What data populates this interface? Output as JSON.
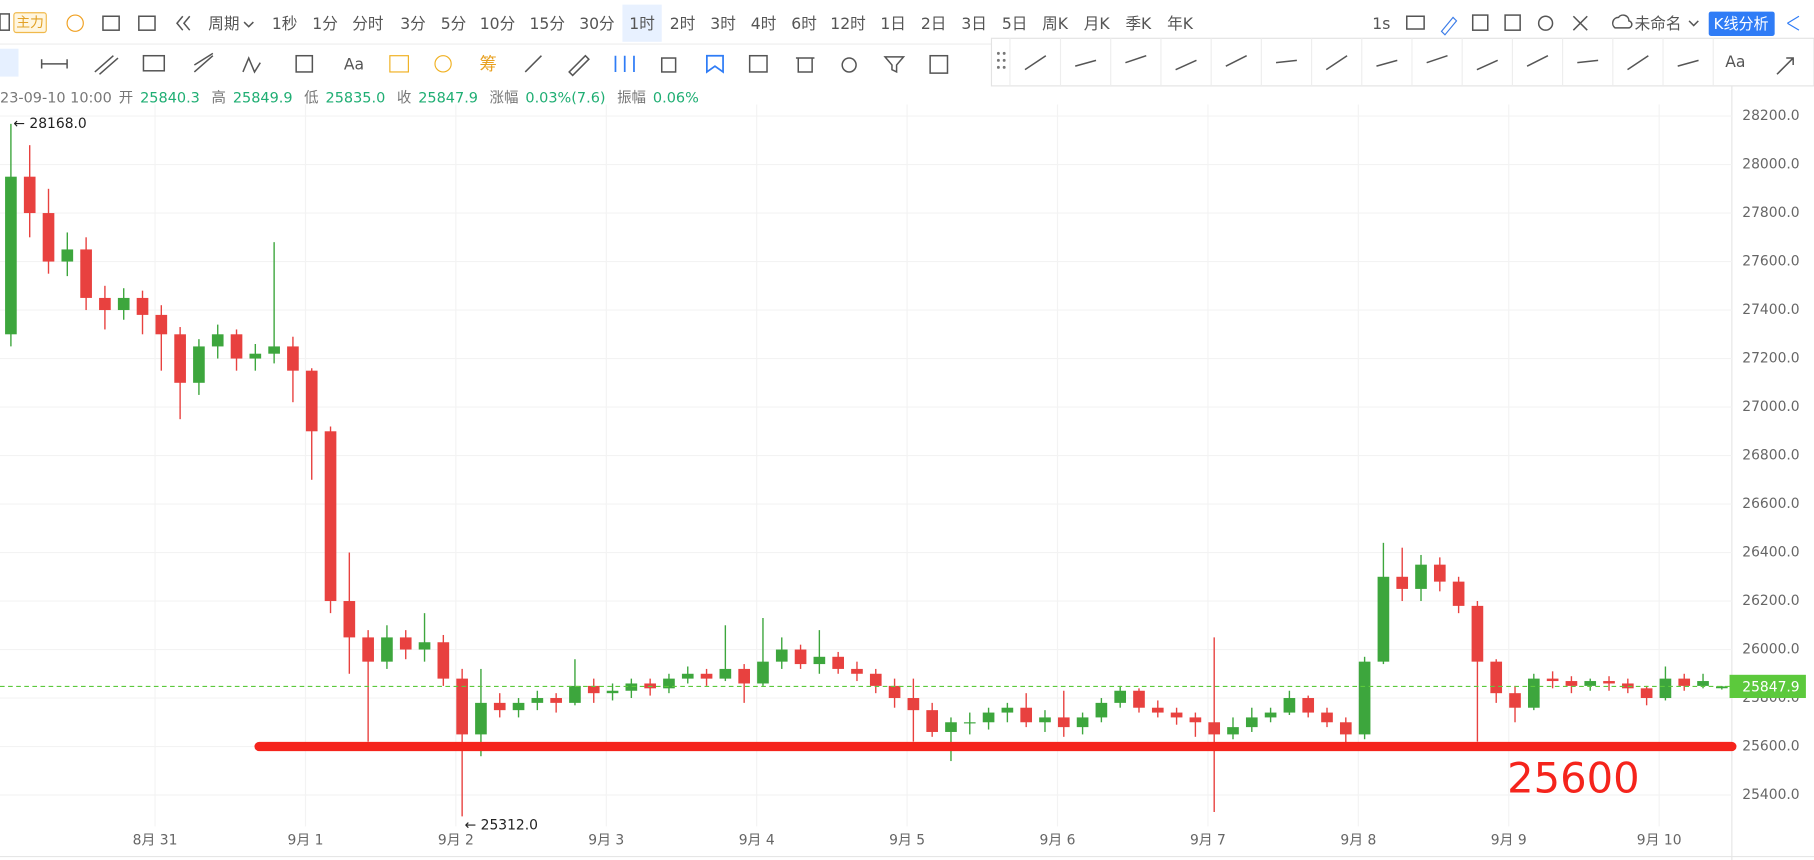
{
  "toolbar": {
    "indicator": "主力",
    "period_menu": "周期",
    "periods": [
      "1秒",
      "1分",
      "分时",
      "3分",
      "5分",
      "10分",
      "15分",
      "30分",
      "1时",
      "2时",
      "3时",
      "4时",
      "6时",
      "12时",
      "1日",
      "2日",
      "3日",
      "5日",
      "周K",
      "月K",
      "季K",
      "年K"
    ],
    "selected_period": "1时",
    "refresh": "1s",
    "layout_name": "未命名",
    "analysis_button": "K线分析",
    "text_tool": "Aa",
    "chip_tool": "筹",
    "panel_text_tool": "Aa"
  },
  "ohlc_header": {
    "time": "23-09-10 10:00",
    "fields": [
      {
        "label": "开",
        "value": "25840.3"
      },
      {
        "label": "高",
        "value": "25849.9"
      },
      {
        "label": "低",
        "value": "25835.0"
      },
      {
        "label": "收",
        "value": "25847.9"
      },
      {
        "label": "涨幅",
        "value": "0.03%(7.6)"
      },
      {
        "label": "振幅",
        "value": "0.06%"
      }
    ]
  },
  "chart_data": {
    "type": "candlestick",
    "up_color": "#3da63d",
    "down_color": "#e8413f",
    "grid": true,
    "x": [
      -23,
      -20,
      -17,
      -14,
      -11,
      -8,
      -5,
      -2,
      1,
      4,
      7,
      10,
      13,
      16,
      19,
      22,
      25,
      28,
      31,
      34,
      37,
      40,
      43,
      46,
      49,
      52,
      55,
      58,
      61,
      64,
      67,
      70,
      73,
      76,
      79,
      82,
      85,
      88,
      91,
      94,
      97,
      100,
      103,
      106,
      109,
      112,
      115,
      118,
      121,
      124,
      127,
      130,
      133,
      136,
      139,
      142,
      145,
      148,
      151,
      154,
      157,
      160,
      163,
      166,
      169,
      172,
      175,
      178,
      181,
      184,
      187,
      190,
      193,
      196,
      199,
      202,
      205,
      208,
      211,
      214,
      217,
      220,
      223,
      226,
      229,
      232,
      235,
      238,
      241,
      244,
      247,
      250
    ],
    "open": [
      27300,
      27950,
      27800,
      27600,
      27650,
      27450,
      27400,
      27450,
      27380,
      27300,
      27100,
      27250,
      27300,
      27200,
      27220,
      27250,
      27150,
      26900,
      26200,
      26050,
      25950,
      26050,
      26000,
      26030,
      25880,
      25650,
      25780,
      25750,
      25780,
      25800,
      25780,
      25850,
      25820,
      25830,
      25860,
      25840,
      25880,
      25900,
      25880,
      25920,
      25860,
      25950,
      26000,
      25940,
      25970,
      25920,
      25900,
      25850,
      25800,
      25750,
      25660,
      25700,
      25700,
      25740,
      25760,
      25700,
      25720,
      25680,
      25720,
      25780,
      25830,
      25760,
      25740,
      25720,
      25700,
      25650,
      25680,
      25720,
      25740,
      25800,
      25740,
      25700,
      25650,
      25950,
      26300,
      26250,
      26350,
      26280,
      26180,
      25950,
      25820,
      25760,
      25880,
      25870,
      25850,
      25870,
      25860,
      25840,
      25800,
      25880,
      25850,
      25840.3
    ],
    "high": [
      28168,
      28080,
      27900,
      27720,
      27700,
      27500,
      27490,
      27480,
      27420,
      27330,
      27280,
      27340,
      27320,
      27260,
      27680,
      27290,
      27160,
      26920,
      26400,
      26080,
      26100,
      26080,
      26150,
      26060,
      25920,
      25920,
      25820,
      25800,
      25830,
      25820,
      25960,
      25880,
      25860,
      25880,
      25880,
      25900,
      25930,
      25920,
      26100,
      25940,
      26130,
      26050,
      26020,
      26080,
      25990,
      25950,
      25920,
      25880,
      25880,
      25780,
      25720,
      25740,
      25760,
      25780,
      25820,
      25750,
      25830,
      25740,
      25800,
      25850,
      25840,
      25790,
      25760,
      25740,
      26050,
      25720,
      25760,
      25760,
      25830,
      25810,
      25760,
      25720,
      25970,
      26440,
      26420,
      26390,
      26380,
      26300,
      26200,
      25960,
      25850,
      25900,
      25910,
      25890,
      25880,
      25890,
      25880,
      25850,
      25930,
      25900,
      25900,
      25849.9
    ],
    "low": [
      27250,
      27700,
      27550,
      27540,
      27400,
      27320,
      27360,
      27300,
      27150,
      26950,
      27050,
      27200,
      27150,
      27150,
      27180,
      27020,
      26700,
      26150,
      25900,
      25620,
      25920,
      25960,
      25950,
      25850,
      25312,
      25560,
      25720,
      25720,
      25750,
      25740,
      25770,
      25780,
      25790,
      25800,
      25810,
      25820,
      25860,
      25850,
      25870,
      25780,
      25850,
      25920,
      25920,
      25900,
      25900,
      25870,
      25820,
      25760,
      25620,
      25640,
      25540,
      25650,
      25670,
      25700,
      25680,
      25660,
      25640,
      25650,
      25700,
      25760,
      25740,
      25720,
      25690,
      25640,
      25330,
      25630,
      25660,
      25700,
      25730,
      25720,
      25680,
      25610,
      25630,
      25940,
      26200,
      26200,
      26240,
      26150,
      25620,
      25780,
      25700,
      25750,
      25840,
      25820,
      25830,
      25830,
      25820,
      25770,
      25790,
      25830,
      25840,
      25835.0
    ],
    "close": [
      27950,
      27800,
      27600,
      27650,
      27450,
      27400,
      27450,
      27380,
      27300,
      27100,
      27250,
      27300,
      27200,
      27220,
      27250,
      27150,
      26900,
      26200,
      26050,
      25950,
      26050,
      26000,
      26030,
      25880,
      25650,
      25780,
      25750,
      25780,
      25800,
      25780,
      25850,
      25820,
      25830,
      25860,
      25840,
      25880,
      25900,
      25880,
      25920,
      25860,
      25950,
      26000,
      25940,
      25970,
      25920,
      25900,
      25850,
      25800,
      25750,
      25660,
      25700,
      25700,
      25740,
      25760,
      25700,
      25720,
      25680,
      25720,
      25780,
      25830,
      25760,
      25740,
      25720,
      25700,
      25650,
      25680,
      25720,
      25740,
      25800,
      25740,
      25700,
      25650,
      25950,
      26300,
      26250,
      26350,
      26280,
      26180,
      25950,
      25820,
      25760,
      25880,
      25870,
      25850,
      25870,
      25860,
      25840,
      25800,
      25880,
      25850,
      25870,
      25847.9
    ],
    "xlim": [
      -24.74,
      251.6
    ],
    "xticks": [
      {
        "value": 0,
        "label": "8月 31"
      },
      {
        "value": 24,
        "label": "9月 1"
      },
      {
        "value": 48,
        "label": "9月 2"
      },
      {
        "value": 72,
        "label": "9月 3"
      },
      {
        "value": 96,
        "label": "9月 4"
      },
      {
        "value": 120,
        "label": "9月 5"
      },
      {
        "value": 144,
        "label": "9月 6"
      },
      {
        "value": 168,
        "label": "9月 7"
      },
      {
        "value": 192,
        "label": "9月 8"
      },
      {
        "value": 216,
        "label": "9月 9"
      },
      {
        "value": 240,
        "label": "9月 10"
      }
    ],
    "ylim": [
      25270.8,
      28247.9
    ],
    "yticks": [
      {
        "value": 25400,
        "label": "25400.0"
      },
      {
        "value": 25600,
        "label": "25600.0"
      },
      {
        "value": 25800,
        "label": "25800.0"
      },
      {
        "value": 26000,
        "label": "26000.0"
      },
      {
        "value": 26200,
        "label": "26200.0"
      },
      {
        "value": 26400,
        "label": "26400.0"
      },
      {
        "value": 26600,
        "label": "26600.0"
      },
      {
        "value": 26800,
        "label": "26800.0"
      },
      {
        "value": 27000,
        "label": "27000.0"
      },
      {
        "value": 27200,
        "label": "27200.0"
      },
      {
        "value": 27400,
        "label": "27400.0"
      },
      {
        "value": 27600,
        "label": "27600.0"
      },
      {
        "value": 27800,
        "label": "27800.0"
      },
      {
        "value": 28000,
        "label": "28000.0"
      },
      {
        "value": 28200,
        "label": "28200.0"
      }
    ],
    "last_price": {
      "value": 25847.9,
      "color": "#5cc93c"
    },
    "extremes": [
      {
        "x": -23,
        "value": 28168,
        "label": "28168.0"
      },
      {
        "x": 49,
        "value": 25312,
        "label": "25312.0"
      }
    ],
    "support_line": {
      "value": 25600,
      "x_start": 16.6,
      "color": "#f5241c"
    }
  }
}
